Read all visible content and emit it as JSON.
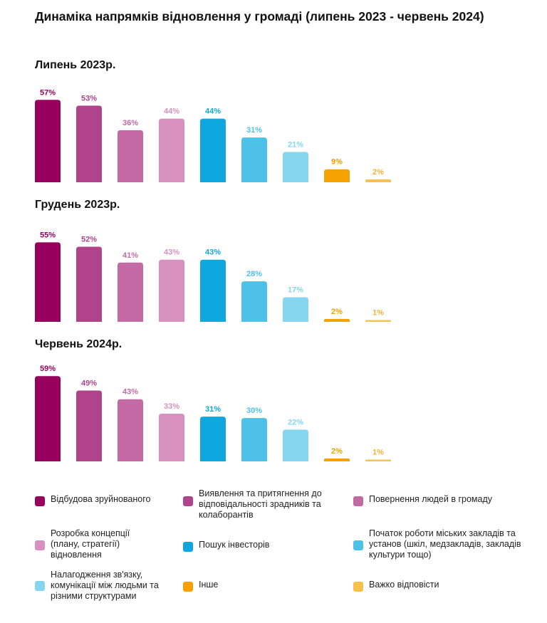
{
  "title": "Динаміка напрямків відновлення у громаді (липень 2023 - червень 2024)",
  "chart_data": [
    {
      "type": "bar",
      "title": "Липень 2023р.",
      "categories": [
        "Відбудова зруйнованого",
        "Виявлення та притягнення до відповідальності зрадників та колаборантів",
        "Повернення людей в громаду",
        "Розробка концепції (плану, стратегії) відновлення",
        "Пошук інвесторів",
        "Початок роботи міських закладів та установ (шкіл, медзакладів, закладів культури тощо)",
        "Налагодження зв'язку, комунікації між людьми та різними структурами",
        "Інше",
        "Важко відповісти"
      ],
      "values": [
        57,
        53,
        36,
        44,
        44,
        31,
        21,
        9,
        2
      ],
      "value_labels": [
        "57%",
        "53%",
        "36%",
        "44%",
        "44%",
        "31%",
        "21%",
        "9%",
        "2%"
      ],
      "ylim": [
        0,
        60
      ]
    },
    {
      "type": "bar",
      "title": "Грудень 2023р.",
      "categories": [
        "Відбудова зруйнованого",
        "Виявлення та притягнення до відповідальності зрадників та колаборантів",
        "Повернення людей в громаду",
        "Розробка концепції (плану, стратегії) відновлення",
        "Пошук інвесторів",
        "Початок роботи міських закладів та установ (шкіл, медзакладів, закладів культури тощо)",
        "Налагодження зв'язку, комунікації між людьми та різними структурами",
        "Інше",
        "Важко відповісти"
      ],
      "values": [
        55,
        52,
        41,
        43,
        43,
        28,
        17,
        2,
        1
      ],
      "value_labels": [
        "55%",
        "52%",
        "41%",
        "43%",
        "43%",
        "28%",
        "17%",
        "2%",
        "1%"
      ],
      "ylim": [
        0,
        60
      ]
    },
    {
      "type": "bar",
      "title": "Червень 2024р.",
      "categories": [
        "Відбудова зруйнованого",
        "Виявлення та притягнення до відповідальності зрадників та колаборантів",
        "Повернення людей в громаду",
        "Розробка концепції (плану, стратегії) відновлення",
        "Пошук інвесторів",
        "Початок роботи міських закладів та установ (шкіл, медзакладів, закладів культури тощо)",
        "Налагодження зв'язку, комунікації між людьми та різними структурами",
        "Інше",
        "Важко відповісти"
      ],
      "values": [
        59,
        49,
        43,
        33,
        31,
        30,
        22,
        2,
        1
      ],
      "value_labels": [
        "59%",
        "49%",
        "43%",
        "33%",
        "31%",
        "30%",
        "22%",
        "2%",
        "1%"
      ],
      "ylim": [
        0,
        60
      ]
    }
  ],
  "colors": [
    "#98005d",
    "#b0448a",
    "#c36aa5",
    "#d890c0",
    "#0fa8de",
    "#4dc1e7",
    "#86d6ef",
    "#f5a100",
    "#f8c14f"
  ],
  "legend": [
    {
      "label": "Відбудова зруйнованого"
    },
    {
      "label": "Виявлення та притягнення до відповідальності зрадників та колаборантів"
    },
    {
      "label": "Повернення людей в громаду"
    },
    {
      "label": "Розробка концепції (плану, стратегії) відновлення"
    },
    {
      "label": "Пошук інвесторів"
    },
    {
      "label": "Початок роботи міських закладів та установ (шкіл, медзакладів, закладів культури тощо)"
    },
    {
      "label": "Налагодження зв'язку, комунікації між людьми та різними структурами"
    },
    {
      "label": "Інше"
    },
    {
      "label": "Важко відповісти"
    }
  ]
}
